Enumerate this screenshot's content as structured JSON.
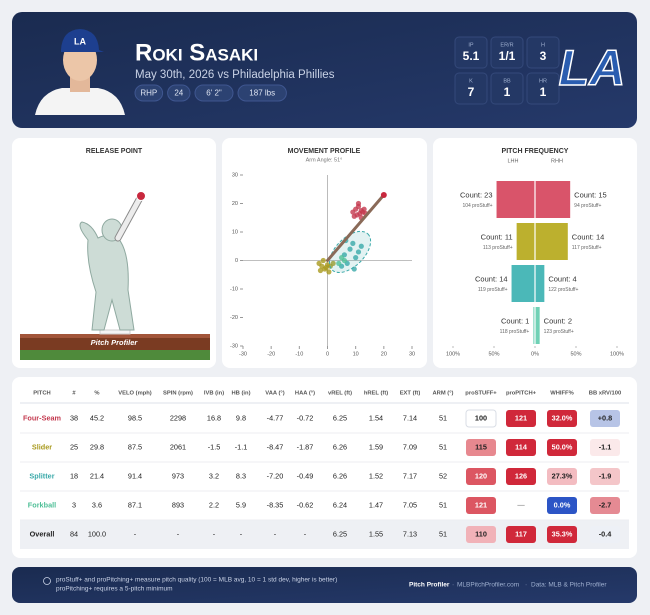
{
  "header": {
    "name": "Roki Sasaki",
    "subtitle": "May 30th, 2026 vs Philadelphia Phillies",
    "chips": [
      "RHP",
      "24",
      "6' 2\"",
      "187 lbs"
    ],
    "stats": [
      {
        "label": "IP",
        "value": "5.1"
      },
      {
        "label": "ER/R",
        "value": "1/1"
      },
      {
        "label": "H",
        "value": "3"
      },
      {
        "label": "K",
        "value": "7"
      },
      {
        "label": "BB",
        "value": "1"
      },
      {
        "label": "HR",
        "value": "1"
      }
    ],
    "logo": "LA"
  },
  "release_point": {
    "title": "RELEASE POINT",
    "brand": "Pitch Profiler"
  },
  "chart_data": [
    {
      "type": "scatter",
      "title": "MOVEMENT PROFILE",
      "subtitle": "Arm Angle: 51°",
      "xlim": [
        -30,
        30
      ],
      "ylim": [
        -30,
        30
      ],
      "xticks": [
        -30,
        -20,
        -10,
        0,
        10,
        20,
        30
      ],
      "yticks": [
        -30,
        -20,
        -10,
        0,
        10,
        20,
        30
      ],
      "arm_line": {
        "x": [
          0,
          20
        ],
        "y": [
          0,
          23
        ],
        "color": "#8a6a58"
      },
      "series": [
        {
          "color": "#c43a4f",
          "x": [
            9,
            10,
            11,
            12,
            13,
            10.5,
            11.5,
            12.5,
            9.5,
            11,
            12,
            13.5
          ],
          "y": [
            17,
            18,
            19,
            17.5,
            18,
            16,
            16.5,
            17,
            15.5,
            20,
            15,
            16.5
          ]
        },
        {
          "color": "#a99a1e",
          "x": [
            -3,
            -2,
            -1,
            0,
            1,
            -2.5,
            -1.5,
            0.5,
            -0.5,
            2
          ],
          "y": [
            -1,
            -2,
            -3,
            -1.5,
            -2,
            -3.5,
            0,
            -4,
            -2.5,
            -1
          ]
        },
        {
          "color": "#3aa9a9",
          "x": [
            5,
            6,
            8,
            9,
            10,
            12,
            7,
            11,
            6.5,
            9.5
          ],
          "y": [
            -2,
            2,
            4,
            6,
            1,
            5,
            -1,
            3,
            7,
            -3
          ],
          "ellipse": {
            "x": 8,
            "y": 3,
            "rx": 9,
            "ry": 5,
            "angle": 45
          }
        },
        {
          "color": "#4fbf97",
          "x": [
            4,
            5,
            6
          ],
          "y": [
            -1,
            1,
            0
          ]
        }
      ]
    },
    {
      "type": "bar",
      "title": "PITCH FREQUENCY",
      "orientation": "diverging",
      "xlim": [
        -100,
        100
      ],
      "xticks": [
        {
          "value": -100,
          "label": "100%"
        },
        {
          "value": -50,
          "label": "50%"
        },
        {
          "value": 0,
          "label": "0%"
        },
        {
          "value": 50,
          "label": "50%"
        },
        {
          "value": 100,
          "label": "100%"
        }
      ],
      "colors": [
        "#d9546a",
        "#bcb02e",
        "#4bb8b8",
        "#6fd1b5"
      ],
      "series": [
        {
          "name": "LHH",
          "values": [
            46.9,
            22.4,
            28.6,
            2.0
          ],
          "count_labels": [
            "Count: 23",
            "Count: 11",
            "Count: 14",
            "Count: 1"
          ],
          "stuff_labels": [
            "104 proStuff+",
            "113 proStuff+",
            "119 proStuff+",
            "118 proStuff+"
          ]
        },
        {
          "name": "RHH",
          "values": [
            42.9,
            40.0,
            11.4,
            5.7
          ],
          "count_labels": [
            "Count: 15",
            "Count: 14",
            "Count: 4",
            "Count: 2"
          ],
          "stuff_labels": [
            "94 proStuff+",
            "117 proStuff+",
            "122 proStuff+",
            "123 proStuff+"
          ]
        }
      ]
    }
  ],
  "table": {
    "headers": [
      "PITCH",
      "#",
      "%",
      "VELO (mph)",
      "SPIN (rpm)",
      "IVB (in)",
      "HB (in)",
      "VAA (°)",
      "HAA (°)",
      "vREL (ft)",
      "hREL (ft)",
      "EXT (ft)",
      "ARM (°)",
      "proSTUFF+",
      "proPITCH+",
      "WHIFF%",
      "BB xRV/100"
    ],
    "rows": [
      {
        "color": "#c43a4f",
        "cells": [
          "Four-Seam",
          "38",
          "45.2",
          "98.5",
          "2298",
          "16.8",
          "9.8",
          "-4.77",
          "-0.72",
          "6.25",
          "1.54",
          "7.14",
          "51",
          "100",
          "121",
          "32.0%",
          "+0.8"
        ],
        "badges": [
          "#ffffff",
          "#d0283a",
          "#d0283a",
          "#b7c4e6"
        ]
      },
      {
        "color": "#a99a1e",
        "cells": [
          "Slider",
          "25",
          "29.8",
          "87.5",
          "2061",
          "-1.5",
          "-1.1",
          "-8.47",
          "-1.87",
          "6.26",
          "1.59",
          "7.09",
          "51",
          "115",
          "114",
          "50.0%",
          "-1.1"
        ],
        "badges": [
          "#e7888f",
          "#d0283a",
          "#d0283a",
          "#fbe9ea"
        ]
      },
      {
        "color": "#3aa9a9",
        "cells": [
          "Splitter",
          "18",
          "21.4",
          "91.4",
          "973",
          "3.2",
          "8.3",
          "-7.20",
          "-0.49",
          "6.26",
          "1.52",
          "7.17",
          "52",
          "120",
          "126",
          "27.3%",
          "-1.9"
        ],
        "badges": [
          "#dc5662",
          "#d0283a",
          "#f3bcc1",
          "#f4c6c9"
        ]
      },
      {
        "color": "#4fbf97",
        "cells": [
          "Forkball",
          "3",
          "3.6",
          "87.1",
          "893",
          "2.2",
          "5.9",
          "-8.35",
          "-0.62",
          "6.24",
          "1.47",
          "7.05",
          "51",
          "121",
          "—",
          "0.0%",
          "-2.7"
        ],
        "badges": [
          "#dc5662",
          null,
          "#2c55c6",
          "#e58a93"
        ]
      },
      {
        "color": "#222222",
        "cells": [
          "Overall",
          "84",
          "100.0",
          "-",
          "-",
          "-",
          "-",
          "-",
          "-",
          "6.25",
          "1.55",
          "7.13",
          "51",
          "110",
          "117",
          "35.3%",
          "-0.4"
        ],
        "badges": [
          "#f1b2b8",
          "#d0283a",
          "#d0283a",
          "#edf0f6"
        ]
      }
    ]
  },
  "footer": {
    "notes": [
      "proStuff+ and proPitching+ measure pitch quality (100 = MLB avg, 10 = 1 std dev, higher is better)",
      "proPitching+ requires a 5-pitch minimum"
    ],
    "brand": "Pitch Profiler",
    "separator": "·",
    "site": "MLBPitchProfiler.com",
    "source": "Data: MLB & Pitch Profiler"
  }
}
